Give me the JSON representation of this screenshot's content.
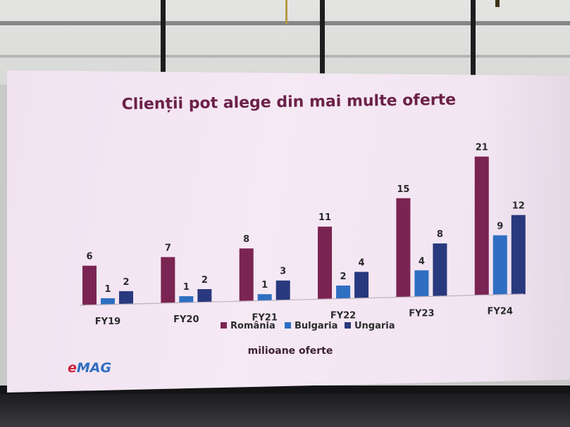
{
  "slide": {
    "brand_logo_text": "eMAG",
    "brand_color": "#d1213a",
    "brand_color_2": "#2f6fc0"
  },
  "chart_data": {
    "type": "bar",
    "title": "Clienții pot alege din mai multe oferte",
    "xlabel": "milioane oferte",
    "ylabel": "",
    "categories": [
      "FY19",
      "FY20",
      "FY21",
      "FY22",
      "FY23",
      "FY24"
    ],
    "series": [
      {
        "name": "România",
        "color": "#7a2453",
        "values": [
          6,
          7,
          8,
          11,
          15,
          21
        ]
      },
      {
        "name": "Bulgaria",
        "color": "#2e6fc2",
        "values": [
          1,
          1,
          1,
          2,
          4,
          9
        ]
      },
      {
        "name": "Ungaria",
        "color": "#29397e",
        "values": [
          2,
          2,
          3,
          4,
          8,
          12
        ]
      }
    ],
    "data_labels": true,
    "grid": false,
    "legend_position": "bottom",
    "ylim": [
      0,
      21
    ]
  }
}
